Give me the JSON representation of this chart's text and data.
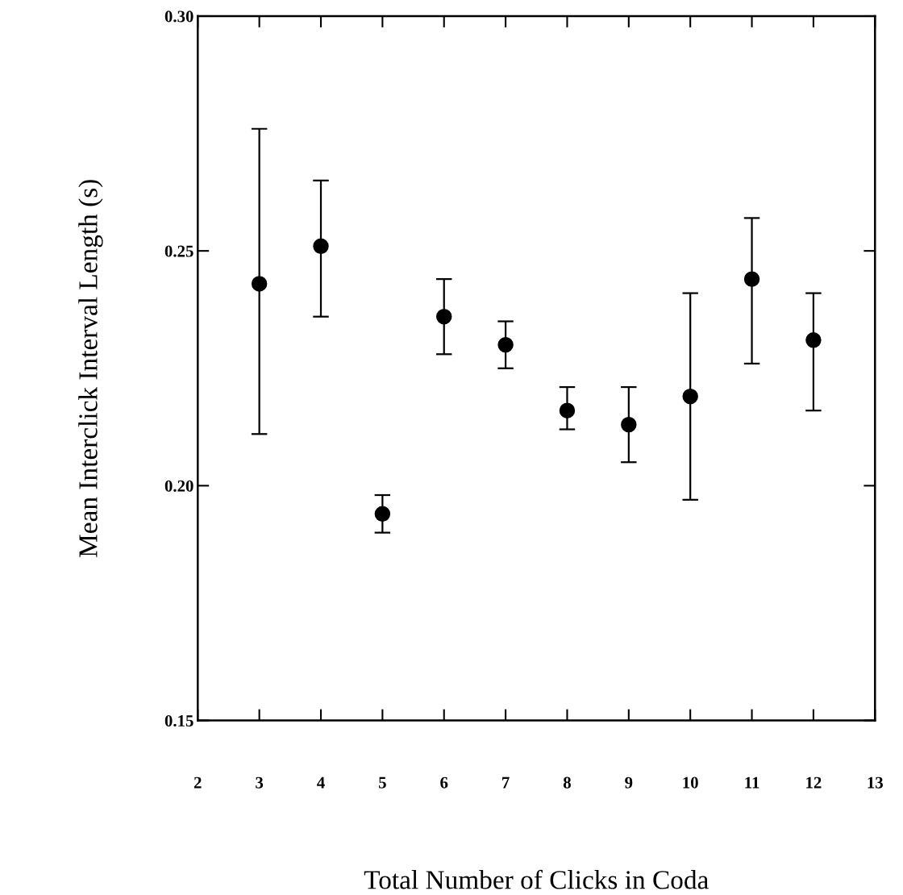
{
  "chart_data": {
    "type": "scatter",
    "xlabel": "Total Number of Clicks in Coda",
    "ylabel": "Mean Interclick Interval Length (s)",
    "x": [
      3,
      4,
      5,
      6,
      7,
      8,
      9,
      10,
      11,
      12
    ],
    "series": [
      {
        "color": "#000000",
        "values": [
          0.243,
          0.251,
          0.194,
          0.236,
          0.23,
          0.216,
          0.213,
          0.219,
          0.244,
          0.231
        ],
        "errors": [
          [
            0.211,
            0.276
          ],
          [
            0.236,
            0.265
          ],
          [
            0.19,
            0.198
          ],
          [
            0.228,
            0.244
          ],
          [
            0.225,
            0.235
          ],
          [
            0.212,
            0.221
          ],
          [
            0.205,
            0.221
          ],
          [
            0.197,
            0.241
          ],
          [
            0.226,
            0.257
          ],
          [
            0.216,
            0.241
          ]
        ]
      }
    ],
    "marker": "circle",
    "xlim": [
      2,
      13
    ],
    "xticks": [
      2,
      3,
      4,
      5,
      6,
      7,
      8,
      9,
      10,
      11,
      12,
      13
    ],
    "ylim": [
      0.15,
      0.3
    ],
    "yticks": [
      {
        "value": 0.15,
        "label": "0.15"
      },
      {
        "value": 0.2,
        "label": "0.20"
      },
      {
        "value": 0.25,
        "label": "0.25"
      },
      {
        "value": 0.3,
        "label": "0.30"
      }
    ],
    "grid": false,
    "legend": false
  }
}
